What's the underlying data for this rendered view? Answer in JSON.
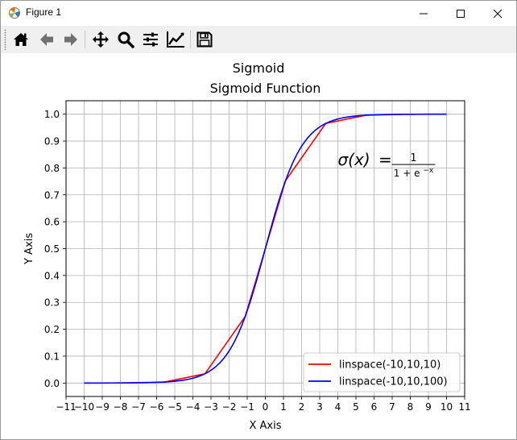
{
  "window": {
    "title": "Figure 1",
    "icons": [
      "matplotlib-icon",
      "minimize-icon",
      "maximize-icon",
      "close-icon"
    ]
  },
  "toolbar": {
    "buttons": [
      {
        "name": "home-button",
        "icon": "home-icon"
      },
      {
        "name": "back-button",
        "icon": "back-arrow-icon"
      },
      {
        "name": "forward-button",
        "icon": "forward-arrow-icon"
      },
      {
        "name": "pan-button",
        "icon": "move-icon"
      },
      {
        "name": "zoom-button",
        "icon": "zoom-icon"
      },
      {
        "name": "configure-subplots-button",
        "icon": "sliders-icon"
      },
      {
        "name": "edit-axis-button",
        "icon": "chart-edit-icon"
      },
      {
        "name": "save-button",
        "icon": "save-icon"
      }
    ]
  },
  "figure": {
    "suptitle": "Sigmoid"
  },
  "chart_data": {
    "type": "line",
    "title": "Sigmoid Function",
    "xlabel": "X Axis",
    "ylabel": "Y Axis",
    "xlim": [
      -11,
      11
    ],
    "ylim": [
      -0.05,
      1.05
    ],
    "xticks": [
      -11,
      -10,
      -9,
      -8,
      -7,
      -6,
      -5,
      -4,
      -3,
      -2,
      -1,
      0,
      1,
      2,
      3,
      4,
      5,
      6,
      7,
      8,
      9,
      10,
      11
    ],
    "xtick_labels": [
      "−11",
      "−10",
      "−9",
      "−8",
      "−7",
      "−6",
      "−5",
      "−4",
      "−3",
      "−2",
      "−1",
      "0",
      "1",
      "2",
      "3",
      "4",
      "5",
      "6",
      "7",
      "8",
      "9",
      "10",
      "11"
    ],
    "yticks": [
      0.0,
      0.1,
      0.2,
      0.3,
      0.4,
      0.5,
      0.6,
      0.7,
      0.8,
      0.9,
      1.0
    ],
    "ytick_labels": [
      "0.0",
      "0.1",
      "0.2",
      "0.3",
      "0.4",
      "0.5",
      "0.6",
      "0.7",
      "0.8",
      "0.9",
      "1.0"
    ],
    "grid": true,
    "legend_position": "lower-right",
    "annotation": {
      "sigma": "σ(x)",
      "equals": "=",
      "numerator": "1",
      "denominator_base": "1 + e",
      "denominator_exp": "−x",
      "x": 4.0,
      "y": 0.81
    },
    "series": [
      {
        "name": "linspace(-10,10,10)",
        "color": "#ff0000",
        "x": [
          -10.0,
          -7.778,
          -5.556,
          -3.333,
          -1.111,
          1.111,
          3.333,
          5.556,
          7.778,
          10.0
        ],
        "y": [
          4.54e-05,
          0.000419,
          0.00385,
          0.0344,
          0.2477,
          0.7523,
          0.9656,
          0.9962,
          0.9996,
          0.99995
        ]
      },
      {
        "name": "linspace(-10,10,100)",
        "color": "#0000ff",
        "x_range": [
          -10,
          10
        ],
        "num_points": 100,
        "function": "1/(1+exp(-x))"
      }
    ]
  }
}
